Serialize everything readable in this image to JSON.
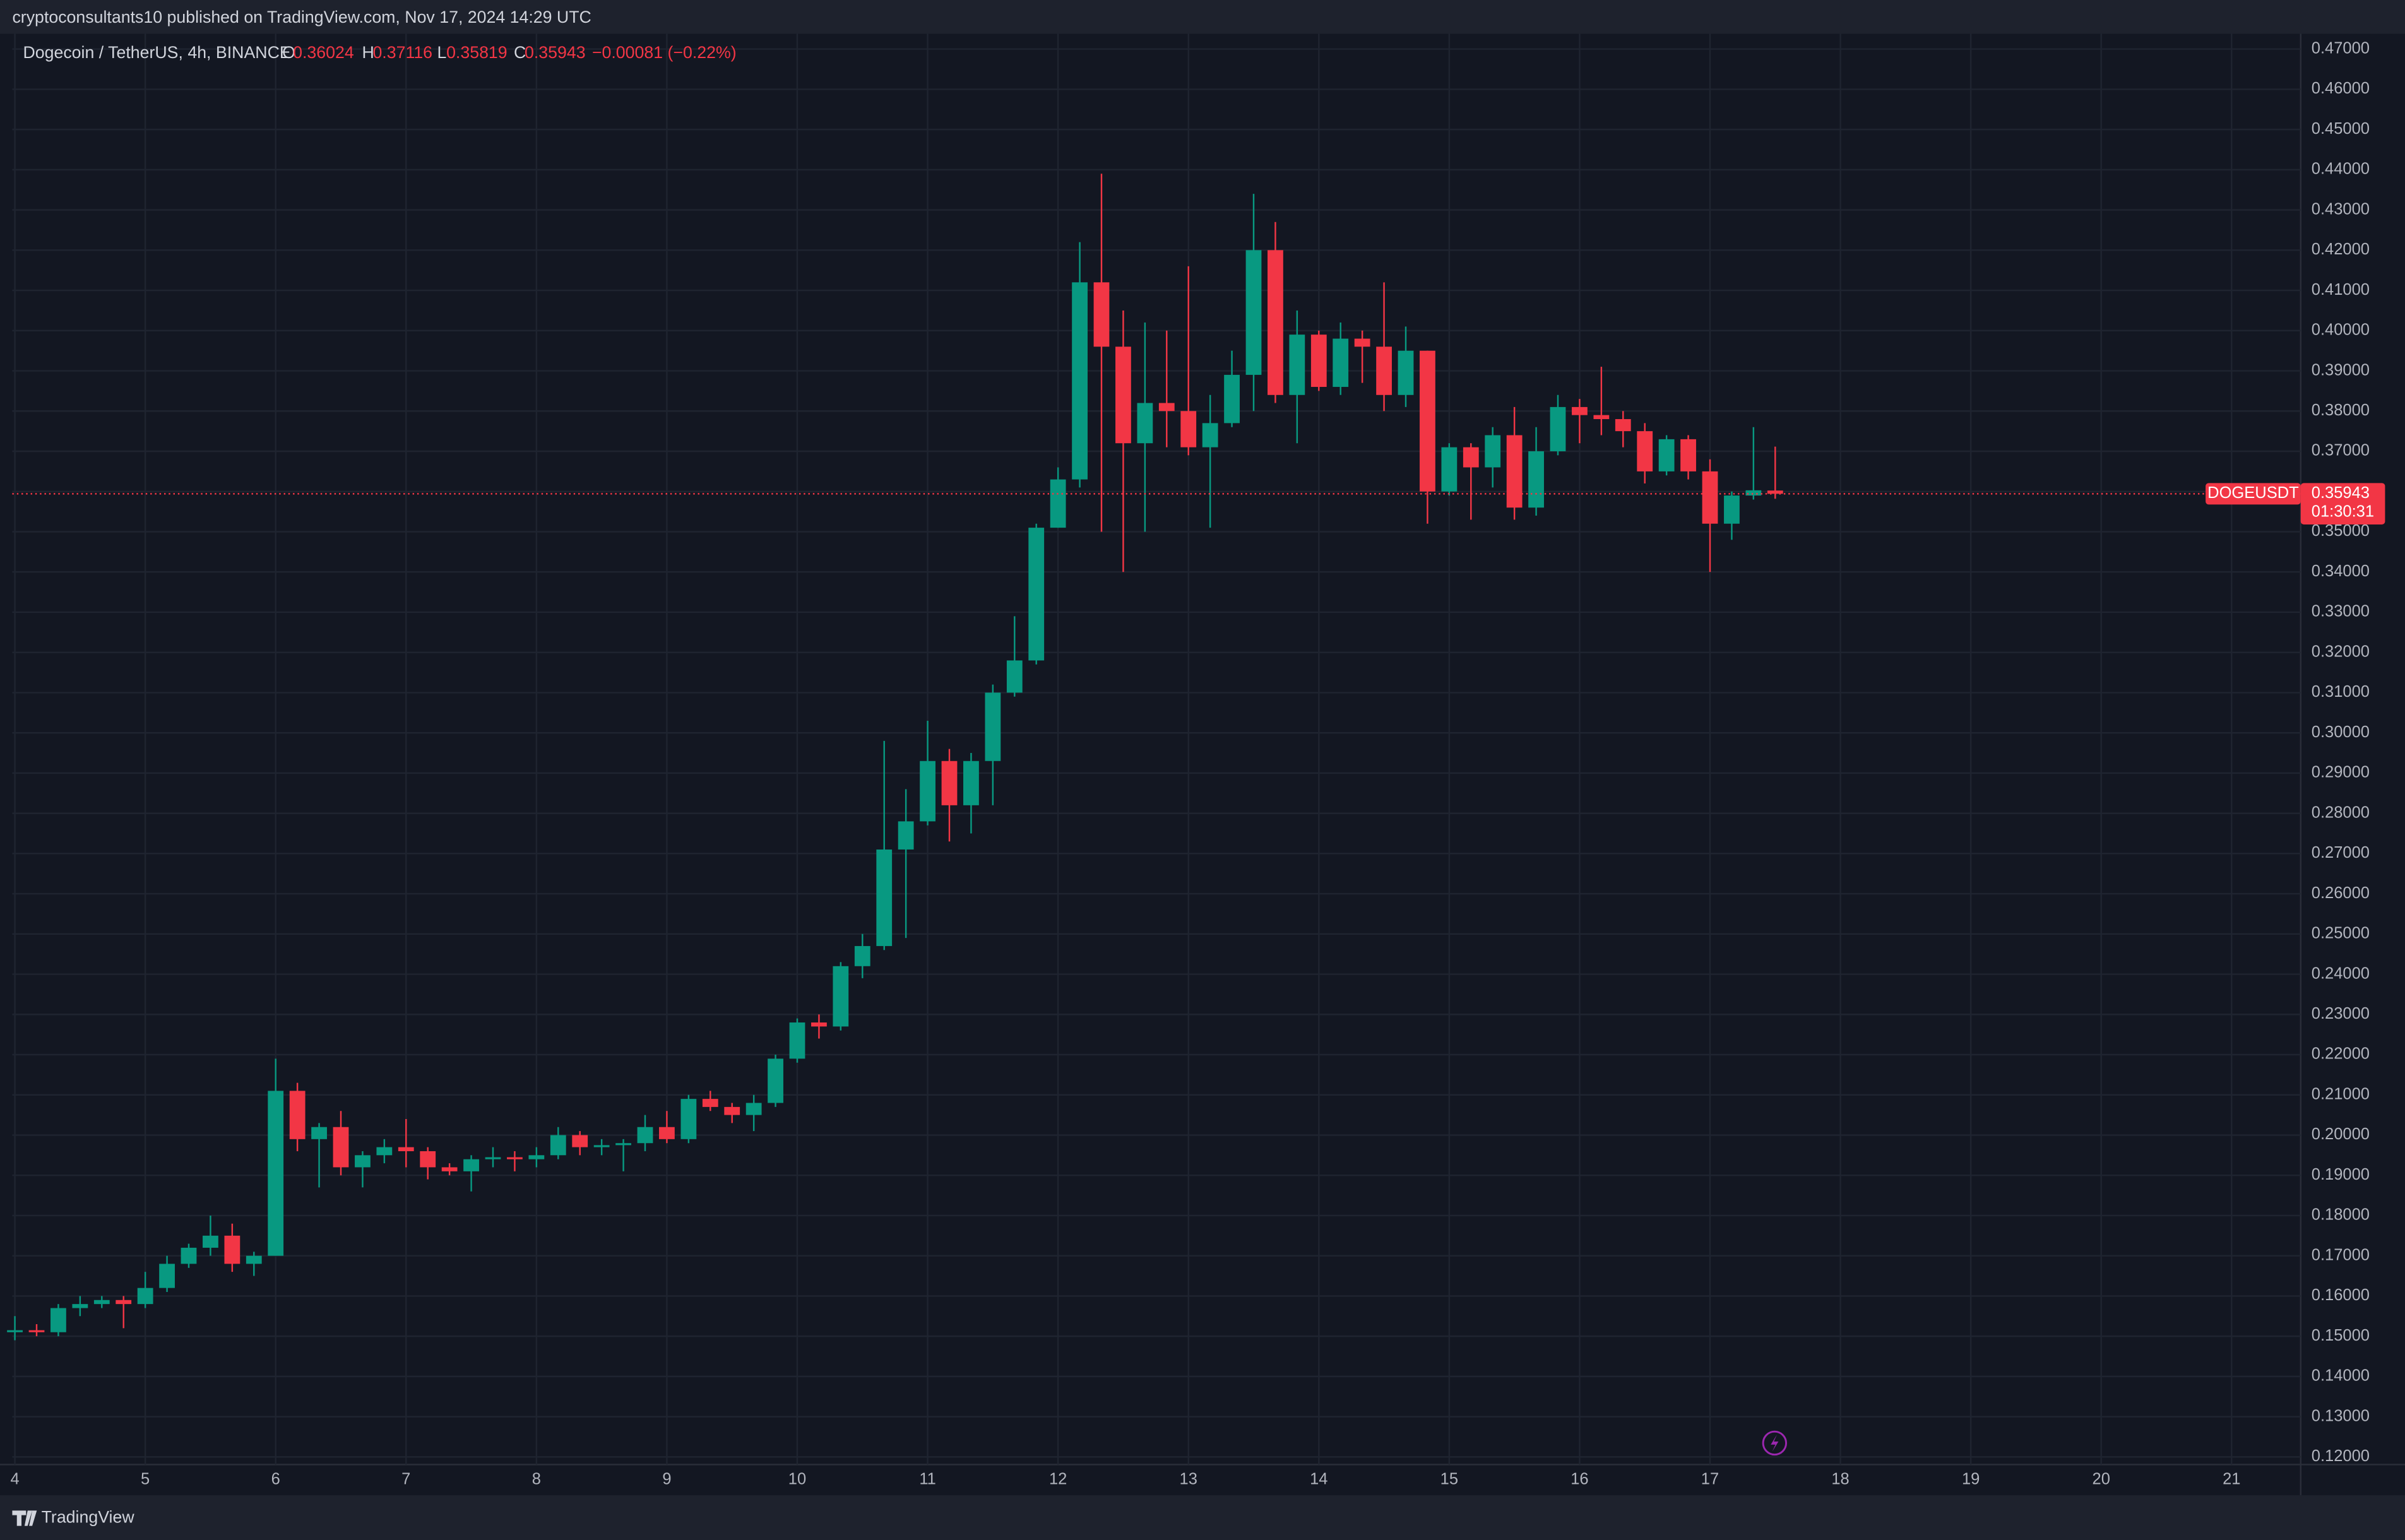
{
  "header": "cryptoconsultants10 published on TradingView.com, Nov 17, 2024 14:29 UTC",
  "footer": "TradingView",
  "chart_data": {
    "type": "candlestick",
    "title": "Dogecoin / TetherUS, 4h, BINANCE",
    "ohlc_labels": [
      "O",
      "H",
      "L",
      "C"
    ],
    "change": "−0.00081 (−0.22%)",
    "symbol": "DOGEUSDT",
    "countdown": "01:30:31",
    "up_color": "#089981",
    "down_color": "#f23645",
    "grid": true,
    "x": [
      4,
      4.1667,
      4.3333,
      4.5,
      4.6667,
      4.8333,
      5,
      5.1667,
      5.3333,
      5.5,
      5.6667,
      5.8333,
      6,
      6.1667,
      6.3333,
      6.5,
      6.6667,
      6.8333,
      7,
      7.1667,
      7.3333,
      7.5,
      7.6667,
      7.8333,
      8,
      8.1667,
      8.3333,
      8.5,
      8.6667,
      8.8333,
      9,
      9.1667,
      9.3333,
      9.5,
      9.6667,
      9.8333,
      10,
      10.1667,
      10.3333,
      10.5,
      10.6667,
      10.8333,
      11,
      11.1667,
      11.3333,
      11.5,
      11.6667,
      11.8333,
      12,
      12.1667,
      12.3333,
      12.5,
      12.6667,
      12.8333,
      13,
      13.1667,
      13.3333,
      13.5,
      13.6667,
      13.8333,
      14,
      14.1667,
      14.3333,
      14.5,
      14.6667,
      14.8333,
      15,
      15.1667,
      15.3333,
      15.5,
      15.6667,
      15.8333,
      16,
      16.1667,
      16.3333,
      16.5,
      16.6667,
      16.8333,
      17,
      17.1667,
      17.3333,
      17.5
    ],
    "open": [
      0.151,
      0.1515,
      0.151,
      0.157,
      0.158,
      0.159,
      0.158,
      0.162,
      0.168,
      0.172,
      0.175,
      0.168,
      0.17,
      0.211,
      0.199,
      0.202,
      0.192,
      0.195,
      0.197,
      0.196,
      0.192,
      0.191,
      0.194,
      0.1945,
      0.194,
      0.195,
      0.2,
      0.197,
      0.1975,
      0.198,
      0.202,
      0.199,
      0.209,
      0.207,
      0.205,
      0.208,
      0.219,
      0.228,
      0.227,
      0.242,
      0.247,
      0.271,
      0.278,
      0.293,
      0.282,
      0.293,
      0.31,
      0.318,
      0.351,
      0.363,
      0.412,
      0.396,
      0.372,
      0.382,
      0.38,
      0.371,
      0.377,
      0.389,
      0.42,
      0.384,
      0.399,
      0.386,
      0.398,
      0.396,
      0.384,
      0.395,
      0.36,
      0.371,
      0.366,
      0.374,
      0.356,
      0.37,
      0.381,
      0.379,
      0.378,
      0.375,
      0.365,
      0.373,
      0.365,
      0.352,
      0.359,
      0.36024
    ],
    "high": [
      0.155,
      0.153,
      0.158,
      0.16,
      0.16,
      0.16,
      0.166,
      0.17,
      0.173,
      0.18,
      0.178,
      0.171,
      0.219,
      0.213,
      0.203,
      0.206,
      0.196,
      0.199,
      0.204,
      0.197,
      0.193,
      0.195,
      0.197,
      0.196,
      0.197,
      0.202,
      0.201,
      0.199,
      0.199,
      0.205,
      0.206,
      0.21,
      0.211,
      0.208,
      0.21,
      0.22,
      0.229,
      0.23,
      0.243,
      0.25,
      0.298,
      0.286,
      0.303,
      0.296,
      0.295,
      0.312,
      0.329,
      0.352,
      0.366,
      0.422,
      0.439,
      0.405,
      0.402,
      0.4,
      0.416,
      0.384,
      0.395,
      0.434,
      0.427,
      0.405,
      0.4,
      0.402,
      0.4,
      0.412,
      0.401,
      0.395,
      0.372,
      0.372,
      0.376,
      0.381,
      0.376,
      0.384,
      0.383,
      0.391,
      0.38,
      0.377,
      0.374,
      0.374,
      0.368,
      0.36,
      0.376,
      0.37116
    ],
    "low": [
      0.149,
      0.15,
      0.15,
      0.155,
      0.157,
      0.152,
      0.157,
      0.161,
      0.167,
      0.17,
      0.166,
      0.165,
      0.17,
      0.196,
      0.187,
      0.19,
      0.187,
      0.193,
      0.192,
      0.189,
      0.19,
      0.186,
      0.192,
      0.191,
      0.192,
      0.194,
      0.195,
      0.195,
      0.191,
      0.196,
      0.198,
      0.198,
      0.206,
      0.203,
      0.201,
      0.207,
      0.218,
      0.224,
      0.226,
      0.239,
      0.246,
      0.249,
      0.277,
      0.273,
      0.275,
      0.282,
      0.309,
      0.317,
      0.351,
      0.361,
      0.35,
      0.34,
      0.35,
      0.371,
      0.369,
      0.351,
      0.376,
      0.38,
      0.382,
      0.372,
      0.385,
      0.384,
      0.387,
      0.38,
      0.381,
      0.352,
      0.359,
      0.353,
      0.361,
      0.353,
      0.354,
      0.369,
      0.372,
      0.374,
      0.371,
      0.362,
      0.364,
      0.363,
      0.34,
      0.348,
      0.358,
      0.35819
    ],
    "close": [
      0.1515,
      0.151,
      0.157,
      0.158,
      0.159,
      0.158,
      0.162,
      0.168,
      0.172,
      0.175,
      0.168,
      0.17,
      0.211,
      0.199,
      0.202,
      0.192,
      0.195,
      0.197,
      0.196,
      0.192,
      0.191,
      0.194,
      0.1945,
      0.194,
      0.195,
      0.2,
      0.197,
      0.1975,
      0.198,
      0.202,
      0.199,
      0.209,
      0.207,
      0.205,
      0.208,
      0.219,
      0.228,
      0.227,
      0.242,
      0.247,
      0.271,
      0.278,
      0.293,
      0.282,
      0.293,
      0.31,
      0.318,
      0.351,
      0.363,
      0.412,
      0.396,
      0.372,
      0.382,
      0.38,
      0.371,
      0.377,
      0.389,
      0.42,
      0.384,
      0.399,
      0.386,
      0.398,
      0.396,
      0.384,
      0.395,
      0.36,
      0.371,
      0.366,
      0.374,
      0.356,
      0.37,
      0.381,
      0.379,
      0.378,
      0.375,
      0.365,
      0.373,
      0.365,
      0.352,
      0.359,
      0.3603,
      0.35943
    ],
    "xlim": [
      3.98,
      21.53
    ],
    "xticks": [
      4,
      5,
      6,
      7,
      8,
      9,
      10,
      11,
      12,
      13,
      14,
      15,
      16,
      17,
      18,
      19,
      20,
      21
    ],
    "ylim": [
      0.1181,
      0.4738
    ],
    "yticks": [
      {
        "value": 0.12,
        "label": "0.12000"
      },
      {
        "value": 0.13,
        "label": "0.13000"
      },
      {
        "value": 0.14,
        "label": "0.14000"
      },
      {
        "value": 0.15,
        "label": "0.15000"
      },
      {
        "value": 0.16,
        "label": "0.16000"
      },
      {
        "value": 0.17,
        "label": "0.17000"
      },
      {
        "value": 0.18,
        "label": "0.18000"
      },
      {
        "value": 0.19,
        "label": "0.19000"
      },
      {
        "value": 0.2,
        "label": "0.20000"
      },
      {
        "value": 0.21,
        "label": "0.21000"
      },
      {
        "value": 0.22,
        "label": "0.22000"
      },
      {
        "value": 0.23,
        "label": "0.23000"
      },
      {
        "value": 0.24,
        "label": "0.24000"
      },
      {
        "value": 0.25,
        "label": "0.25000"
      },
      {
        "value": 0.26,
        "label": "0.26000"
      },
      {
        "value": 0.27,
        "label": "0.27000"
      },
      {
        "value": 0.28,
        "label": "0.28000"
      },
      {
        "value": 0.29,
        "label": "0.29000"
      },
      {
        "value": 0.3,
        "label": "0.30000"
      },
      {
        "value": 0.31,
        "label": "0.31000"
      },
      {
        "value": 0.32,
        "label": "0.32000"
      },
      {
        "value": 0.33,
        "label": "0.33000"
      },
      {
        "value": 0.34,
        "label": "0.34000"
      },
      {
        "value": 0.35,
        "label": "0.35000"
      },
      {
        "value": 0.36,
        "label": "0.36000"
      },
      {
        "value": 0.37,
        "label": "0.37000"
      },
      {
        "value": 0.38,
        "label": "0.38000"
      },
      {
        "value": 0.39,
        "label": "0.39000"
      },
      {
        "value": 0.4,
        "label": "0.40000"
      },
      {
        "value": 0.41,
        "label": "0.41000"
      },
      {
        "value": 0.42,
        "label": "0.42000"
      },
      {
        "value": 0.43,
        "label": "0.43000"
      },
      {
        "value": 0.44,
        "label": "0.44000"
      },
      {
        "value": 0.45,
        "label": "0.45000"
      },
      {
        "value": 0.46,
        "label": "0.46000"
      },
      {
        "value": 0.47,
        "label": "0.47000"
      }
    ]
  }
}
